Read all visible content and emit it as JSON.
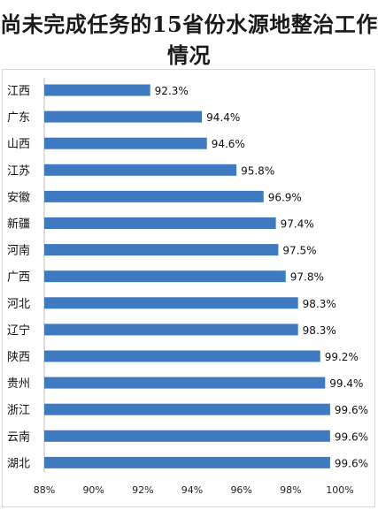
{
  "title": "尚未完成任务的15省份水源地整治工作情况",
  "chart_data": {
    "type": "bar",
    "orientation": "horizontal",
    "title": "尚未完成任务的15省份水源地整治工作情况",
    "xlabel": "",
    "ylabel": "",
    "unit": "%",
    "categories": [
      "江西",
      "广东",
      "山西",
      "江苏",
      "安徽",
      "新疆",
      "河南",
      "广西",
      "河北",
      "辽宁",
      "陕西",
      "贵州",
      "浙江",
      "云南",
      "湖北"
    ],
    "values": [
      92.3,
      94.4,
      94.6,
      95.8,
      96.9,
      97.4,
      97.5,
      97.8,
      98.3,
      98.3,
      99.2,
      99.4,
      99.6,
      99.6,
      99.6
    ],
    "value_labels": [
      "92.3%",
      "94.4%",
      "94.6%",
      "95.8%",
      "96.9%",
      "97.4%",
      "97.5%",
      "97.8%",
      "98.3%",
      "98.3%",
      "99.2%",
      "99.4%",
      "99.6%",
      "99.6%",
      "99.6%"
    ],
    "xlim": [
      88,
      100
    ],
    "xticks": [
      88,
      90,
      92,
      94,
      96,
      98,
      100
    ],
    "xtick_labels": [
      "88%",
      "90%",
      "92%",
      "94%",
      "96%",
      "98%",
      "100%"
    ],
    "grid": false,
    "bar_color": "#3f79c0"
  }
}
